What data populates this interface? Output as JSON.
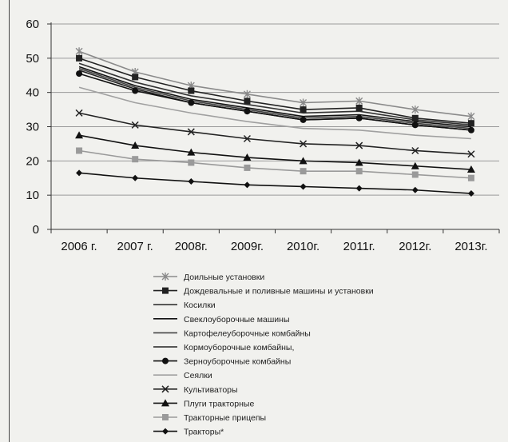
{
  "chart_data": {
    "type": "line",
    "categories": [
      "2006 г.",
      "2007 г.",
      "2008г.",
      "2009г.",
      "2010г.",
      "2011г.",
      "2012г.",
      "2013г."
    ],
    "ylim": [
      0,
      60
    ],
    "yticks": [
      0,
      10,
      20,
      30,
      40,
      50,
      60
    ],
    "grid": true,
    "legend_position": "bottom",
    "series": [
      {
        "name": "Доильные установки",
        "marker": "star",
        "color": "#8a8a8a",
        "values": [
          52,
          46,
          42,
          39.5,
          37,
          37.5,
          35,
          33
        ]
      },
      {
        "name": "Дождевальные и поливные машины и установки",
        "marker": "square",
        "color": "#222222",
        "values": [
          50,
          44.5,
          40.5,
          37.5,
          35,
          35.5,
          32.5,
          31
        ]
      },
      {
        "name": "Косилки",
        "marker": "none",
        "color": "#333333",
        "values": [
          48.5,
          43,
          39,
          36.5,
          34,
          34.5,
          32,
          30.5
        ]
      },
      {
        "name": "Свеклоуборочные машины",
        "marker": "none",
        "color": "#111111",
        "values": [
          47.5,
          42,
          38,
          35.5,
          33,
          33.5,
          31.5,
          30
        ]
      },
      {
        "name": "Картофелеуборочные комбайны",
        "marker": "none",
        "color": "#444444",
        "values": [
          47,
          41.5,
          37.5,
          35,
          32.5,
          33,
          31,
          29.5
        ]
      },
      {
        "name": "Кормоуборочные комбайны,",
        "marker": "none",
        "color": "#222222",
        "values": [
          46.5,
          41,
          37,
          34.5,
          32,
          32.5,
          30.5,
          29
        ]
      },
      {
        "name": "Зерноуборочные комбайны",
        "marker": "dot",
        "color": "#111111",
        "values": [
          45.5,
          40.5,
          37,
          34.5,
          32,
          32.5,
          30.5,
          29
        ]
      },
      {
        "name": "Сеялки",
        "marker": "none",
        "color": "#a0a0a0",
        "values": [
          41.5,
          37,
          34,
          31.5,
          29.5,
          29,
          27.5,
          26.5
        ]
      },
      {
        "name": "Культиваторы",
        "marker": "x",
        "color": "#222222",
        "values": [
          34,
          30.5,
          28.5,
          26.5,
          25,
          24.5,
          23,
          22
        ]
      },
      {
        "name": "Плуги тракторные",
        "marker": "triangle",
        "color": "#111111",
        "values": [
          27.5,
          24.5,
          22.5,
          21,
          20,
          19.5,
          18.5,
          17.5
        ]
      },
      {
        "name": "Тракторные прицепы",
        "marker": "square",
        "color": "#9a9a9a",
        "values": [
          23,
          20.5,
          19.5,
          18,
          17,
          17,
          16,
          15
        ]
      },
      {
        "name": "Тракторы*",
        "marker": "diamond",
        "color": "#111111",
        "values": [
          16.5,
          15,
          14,
          13,
          12.5,
          12,
          11.5,
          10.5
        ]
      }
    ]
  }
}
